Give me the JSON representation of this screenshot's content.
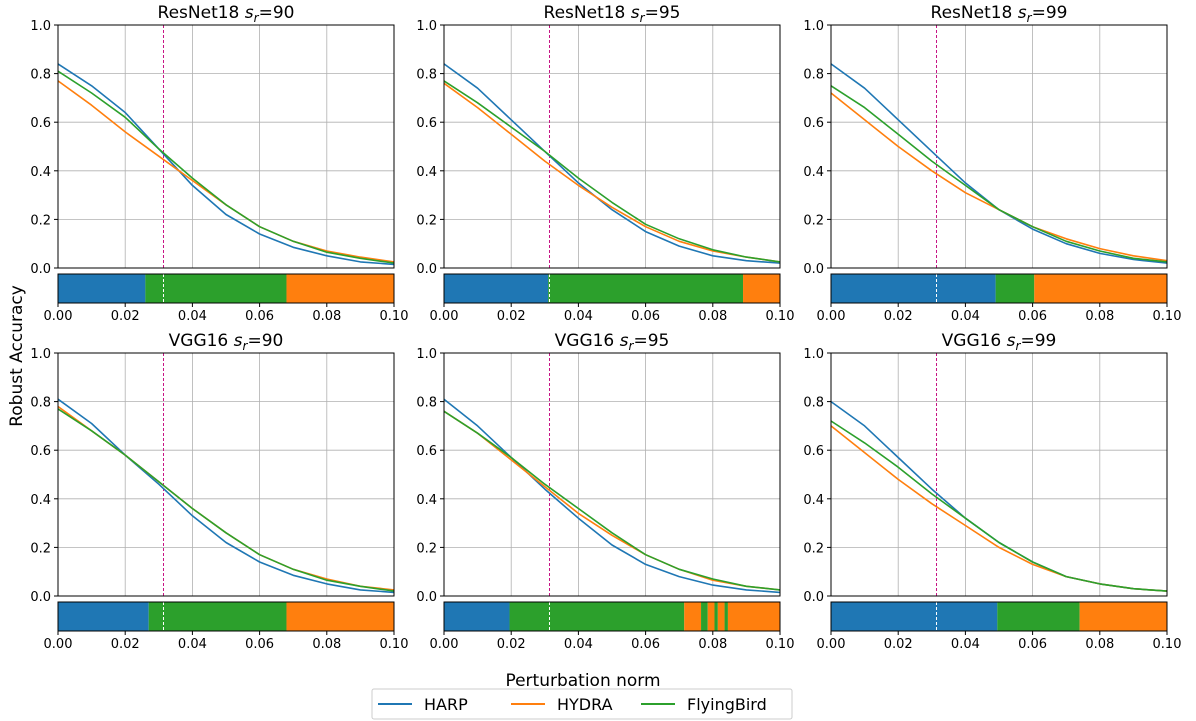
{
  "figure": {
    "ylabel": "Robust Accuracy",
    "xlabel": "Perturbation norm",
    "legend": [
      {
        "name": "HARP",
        "color": "#1f77b4"
      },
      {
        "name": "HYDRA",
        "color": "#ff7f0e"
      },
      {
        "name": "FlyingBird",
        "color": "#2ca02c"
      }
    ],
    "legend_placement": "bottom-center",
    "reference_line_x": 0.0314,
    "reference_line_color": "#c71585"
  },
  "chart_data": [
    {
      "type": "line",
      "title_model": "ResNet18",
      "title_sr": "90",
      "x": [
        0,
        0.01,
        0.02,
        0.03,
        0.04,
        0.05,
        0.06,
        0.07,
        0.08,
        0.09,
        0.1
      ],
      "series": [
        {
          "name": "HARP",
          "values": [
            0.84,
            0.75,
            0.64,
            0.49,
            0.34,
            0.22,
            0.14,
            0.085,
            0.05,
            0.025,
            0.015
          ]
        },
        {
          "name": "HYDRA",
          "values": [
            0.77,
            0.67,
            0.56,
            0.46,
            0.36,
            0.26,
            0.17,
            0.11,
            0.07,
            0.045,
            0.025
          ]
        },
        {
          "name": "FlyingBird",
          "values": [
            0.81,
            0.72,
            0.62,
            0.49,
            0.37,
            0.26,
            0.17,
            0.11,
            0.065,
            0.04,
            0.02
          ]
        }
      ],
      "xlim": [
        0,
        0.1
      ],
      "ylim": [
        0,
        1
      ],
      "xticks": [
        "0.00",
        "0.02",
        "0.04",
        "0.06",
        "0.08",
        "0.10"
      ],
      "yticks": [
        "0.0",
        "0.2",
        "0.4",
        "0.6",
        "0.8",
        "1.0"
      ],
      "grid": true,
      "best_bar": [
        {
          "series": "HARP",
          "from": 0,
          "to": 0.026
        },
        {
          "series": "FlyingBird",
          "from": 0.026,
          "to": 0.068
        },
        {
          "series": "HYDRA",
          "from": 0.068,
          "to": 0.1
        }
      ]
    },
    {
      "type": "line",
      "title_model": "ResNet18",
      "title_sr": "95",
      "x": [
        0,
        0.01,
        0.02,
        0.03,
        0.04,
        0.05,
        0.06,
        0.07,
        0.08,
        0.09,
        0.1
      ],
      "series": [
        {
          "name": "HARP",
          "values": [
            0.84,
            0.74,
            0.61,
            0.48,
            0.35,
            0.24,
            0.15,
            0.09,
            0.05,
            0.03,
            0.02
          ]
        },
        {
          "name": "HYDRA",
          "values": [
            0.76,
            0.66,
            0.55,
            0.44,
            0.34,
            0.25,
            0.17,
            0.11,
            0.07,
            0.045,
            0.025
          ]
        },
        {
          "name": "FlyingBird",
          "values": [
            0.77,
            0.68,
            0.58,
            0.48,
            0.37,
            0.27,
            0.18,
            0.12,
            0.075,
            0.045,
            0.025
          ]
        }
      ],
      "xlim": [
        0,
        0.1
      ],
      "ylim": [
        0,
        1
      ],
      "xticks": [
        "0.00",
        "0.02",
        "0.04",
        "0.06",
        "0.08",
        "0.10"
      ],
      "yticks": [
        "0.0",
        "0.2",
        "0.4",
        "0.6",
        "0.8",
        "1.0"
      ],
      "grid": true,
      "best_bar": [
        {
          "series": "HARP",
          "from": 0,
          "to": 0.031
        },
        {
          "series": "FlyingBird",
          "from": 0.031,
          "to": 0.089
        },
        {
          "series": "HYDRA",
          "from": 0.089,
          "to": 0.1
        }
      ]
    },
    {
      "type": "line",
      "title_model": "ResNet18",
      "title_sr": "99",
      "x": [
        0,
        0.01,
        0.02,
        0.03,
        0.04,
        0.05,
        0.06,
        0.07,
        0.08,
        0.09,
        0.1
      ],
      "series": [
        {
          "name": "HARP",
          "values": [
            0.84,
            0.74,
            0.61,
            0.48,
            0.35,
            0.24,
            0.16,
            0.1,
            0.06,
            0.035,
            0.02
          ]
        },
        {
          "name": "HYDRA",
          "values": [
            0.72,
            0.61,
            0.5,
            0.4,
            0.31,
            0.24,
            0.17,
            0.12,
            0.08,
            0.05,
            0.03
          ]
        },
        {
          "name": "FlyingBird",
          "values": [
            0.75,
            0.66,
            0.55,
            0.44,
            0.34,
            0.24,
            0.17,
            0.11,
            0.07,
            0.04,
            0.025
          ]
        }
      ],
      "xlim": [
        0,
        0.1
      ],
      "ylim": [
        0,
        1
      ],
      "xticks": [
        "0.00",
        "0.02",
        "0.04",
        "0.06",
        "0.08",
        "0.10"
      ],
      "yticks": [
        "0.0",
        "0.2",
        "0.4",
        "0.6",
        "0.8",
        "1.0"
      ],
      "grid": true,
      "best_bar": [
        {
          "series": "HARP",
          "from": 0,
          "to": 0.049
        },
        {
          "series": "FlyingBird",
          "from": 0.049,
          "to": 0.0605
        },
        {
          "series": "HYDRA",
          "from": 0.0605,
          "to": 0.1
        }
      ]
    },
    {
      "type": "line",
      "title_model": "VGG16",
      "title_sr": "90",
      "x": [
        0,
        0.01,
        0.02,
        0.03,
        0.04,
        0.05,
        0.06,
        0.07,
        0.08,
        0.09,
        0.1
      ],
      "series": [
        {
          "name": "HARP",
          "values": [
            0.81,
            0.71,
            0.58,
            0.46,
            0.33,
            0.22,
            0.14,
            0.085,
            0.05,
            0.025,
            0.015
          ]
        },
        {
          "name": "HYDRA",
          "values": [
            0.78,
            0.68,
            0.58,
            0.47,
            0.36,
            0.26,
            0.17,
            0.11,
            0.07,
            0.04,
            0.025
          ]
        },
        {
          "name": "FlyingBird",
          "values": [
            0.77,
            0.68,
            0.58,
            0.47,
            0.36,
            0.26,
            0.17,
            0.11,
            0.065,
            0.04,
            0.02
          ]
        }
      ],
      "xlim": [
        0,
        0.1
      ],
      "ylim": [
        0,
        1
      ],
      "xticks": [
        "0.00",
        "0.02",
        "0.04",
        "0.06",
        "0.08",
        "0.10"
      ],
      "yticks": [
        "0.0",
        "0.2",
        "0.4",
        "0.6",
        "0.8",
        "1.0"
      ],
      "grid": true,
      "best_bar": [
        {
          "series": "HARP",
          "from": 0,
          "to": 0.027
        },
        {
          "series": "FlyingBird",
          "from": 0.027,
          "to": 0.068
        },
        {
          "series": "HYDRA",
          "from": 0.068,
          "to": 0.1
        }
      ]
    },
    {
      "type": "line",
      "title_model": "VGG16",
      "title_sr": "95",
      "x": [
        0,
        0.01,
        0.02,
        0.03,
        0.04,
        0.05,
        0.06,
        0.07,
        0.08,
        0.09,
        0.1
      ],
      "series": [
        {
          "name": "HARP",
          "values": [
            0.81,
            0.7,
            0.57,
            0.44,
            0.32,
            0.21,
            0.13,
            0.08,
            0.045,
            0.025,
            0.015
          ]
        },
        {
          "name": "HYDRA",
          "values": [
            0.76,
            0.67,
            0.56,
            0.45,
            0.34,
            0.25,
            0.17,
            0.11,
            0.065,
            0.04,
            0.025
          ]
        },
        {
          "name": "FlyingBird",
          "values": [
            0.76,
            0.67,
            0.57,
            0.46,
            0.36,
            0.26,
            0.17,
            0.11,
            0.07,
            0.04,
            0.025
          ]
        }
      ],
      "xlim": [
        0,
        0.1
      ],
      "ylim": [
        0,
        1
      ],
      "xticks": [
        "0.00",
        "0.02",
        "0.04",
        "0.06",
        "0.08",
        "0.10"
      ],
      "yticks": [
        "0.0",
        "0.2",
        "0.4",
        "0.6",
        "0.8",
        "1.0"
      ],
      "grid": true,
      "best_bar": [
        {
          "series": "HARP",
          "from": 0,
          "to": 0.0195
        },
        {
          "series": "FlyingBird",
          "from": 0.0195,
          "to": 0.0715
        },
        {
          "series": "HYDRA",
          "from": 0.0715,
          "to": 0.0765
        },
        {
          "series": "FlyingBird",
          "from": 0.0765,
          "to": 0.0785
        },
        {
          "series": "HYDRA",
          "from": 0.0785,
          "to": 0.0805
        },
        {
          "series": "FlyingBird",
          "from": 0.0805,
          "to": 0.0815
        },
        {
          "series": "HYDRA",
          "from": 0.0815,
          "to": 0.0835
        },
        {
          "series": "FlyingBird",
          "from": 0.0835,
          "to": 0.0845
        },
        {
          "series": "HYDRA",
          "from": 0.0845,
          "to": 0.1
        }
      ]
    },
    {
      "type": "line",
      "title_model": "VGG16",
      "title_sr": "99",
      "x": [
        0,
        0.01,
        0.02,
        0.03,
        0.04,
        0.05,
        0.06,
        0.07,
        0.08,
        0.09,
        0.1
      ],
      "series": [
        {
          "name": "HARP",
          "values": [
            0.8,
            0.7,
            0.57,
            0.44,
            0.32,
            0.22,
            0.14,
            0.08,
            0.05,
            0.03,
            0.02
          ]
        },
        {
          "name": "HYDRA",
          "values": [
            0.7,
            0.59,
            0.48,
            0.38,
            0.29,
            0.2,
            0.13,
            0.08,
            0.05,
            0.03,
            0.02
          ]
        },
        {
          "name": "FlyingBird",
          "values": [
            0.72,
            0.63,
            0.53,
            0.42,
            0.32,
            0.22,
            0.14,
            0.08,
            0.05,
            0.03,
            0.02
          ]
        }
      ],
      "xlim": [
        0,
        0.1
      ],
      "ylim": [
        0,
        1
      ],
      "xticks": [
        "0.00",
        "0.02",
        "0.04",
        "0.06",
        "0.08",
        "0.10"
      ],
      "yticks": [
        "0.0",
        "0.2",
        "0.4",
        "0.6",
        "0.8",
        "1.0"
      ],
      "grid": true,
      "best_bar": [
        {
          "series": "HARP",
          "from": 0,
          "to": 0.0495
        },
        {
          "series": "FlyingBird",
          "from": 0.0495,
          "to": 0.074
        },
        {
          "series": "HYDRA",
          "from": 0.074,
          "to": 0.1
        }
      ]
    }
  ]
}
